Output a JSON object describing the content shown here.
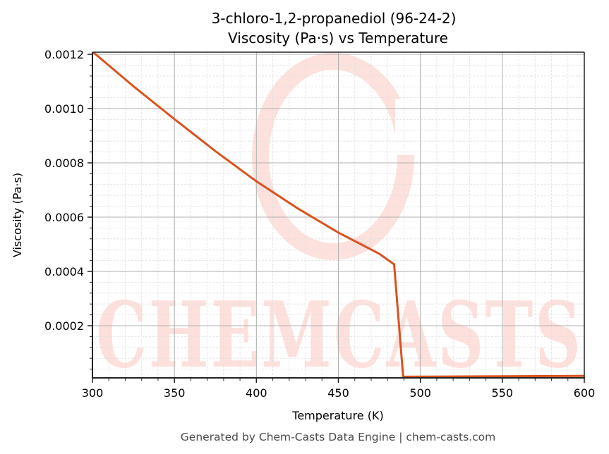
{
  "title": {
    "line1": "3-chloro-1,2-propanediol (96-24-2)",
    "line2": "Viscosity (Pa·s) vs Temperature"
  },
  "footer": "Generated by Chem-Casts Data Engine | chem-casts.com",
  "watermark": {
    "text": "CHEMCASTS",
    "color": "#fde0dc"
  },
  "colors": {
    "line": "#d9531e",
    "major_grid": "#b0b0b0",
    "minor_grid": "#e0e0e0",
    "axis": "#222222"
  },
  "chart_data": {
    "type": "line",
    "title": "3-chloro-1,2-propanediol (96-24-2)\nViscosity (Pa·s) vs Temperature",
    "xlabel": "Temperature (K)",
    "ylabel": "Viscosity (Pa·s)",
    "xlim": [
      300,
      600
    ],
    "ylim": [
      7.8e-06,
      0.0012078
    ],
    "xticks": [
      300,
      350,
      400,
      450,
      500,
      550,
      600
    ],
    "xtick_labels": [
      "300",
      "350",
      "400",
      "450",
      "500",
      "550",
      "600"
    ],
    "yticks": [
      0.0002,
      0.0004,
      0.0006,
      0.0008,
      0.001,
      0.0012
    ],
    "ytick_labels": [
      "0.0002",
      "0.0004",
      "0.0006",
      "0.0008",
      "0.0010",
      "0.0012"
    ],
    "x_minor_step": 10,
    "y_minor_step": 4e-05,
    "grid": true,
    "legend": null,
    "series": [
      {
        "name": "Viscosity",
        "x": [
          300,
          325,
          350,
          375,
          400,
          425,
          450,
          475,
          484,
          489.5,
          600
        ],
        "y": [
          0.00121,
          0.001082,
          0.000961,
          0.000843,
          0.000732,
          0.000633,
          0.000543,
          0.000465,
          0.000426,
          1.2e-05,
          1.5e-05
        ]
      }
    ]
  }
}
